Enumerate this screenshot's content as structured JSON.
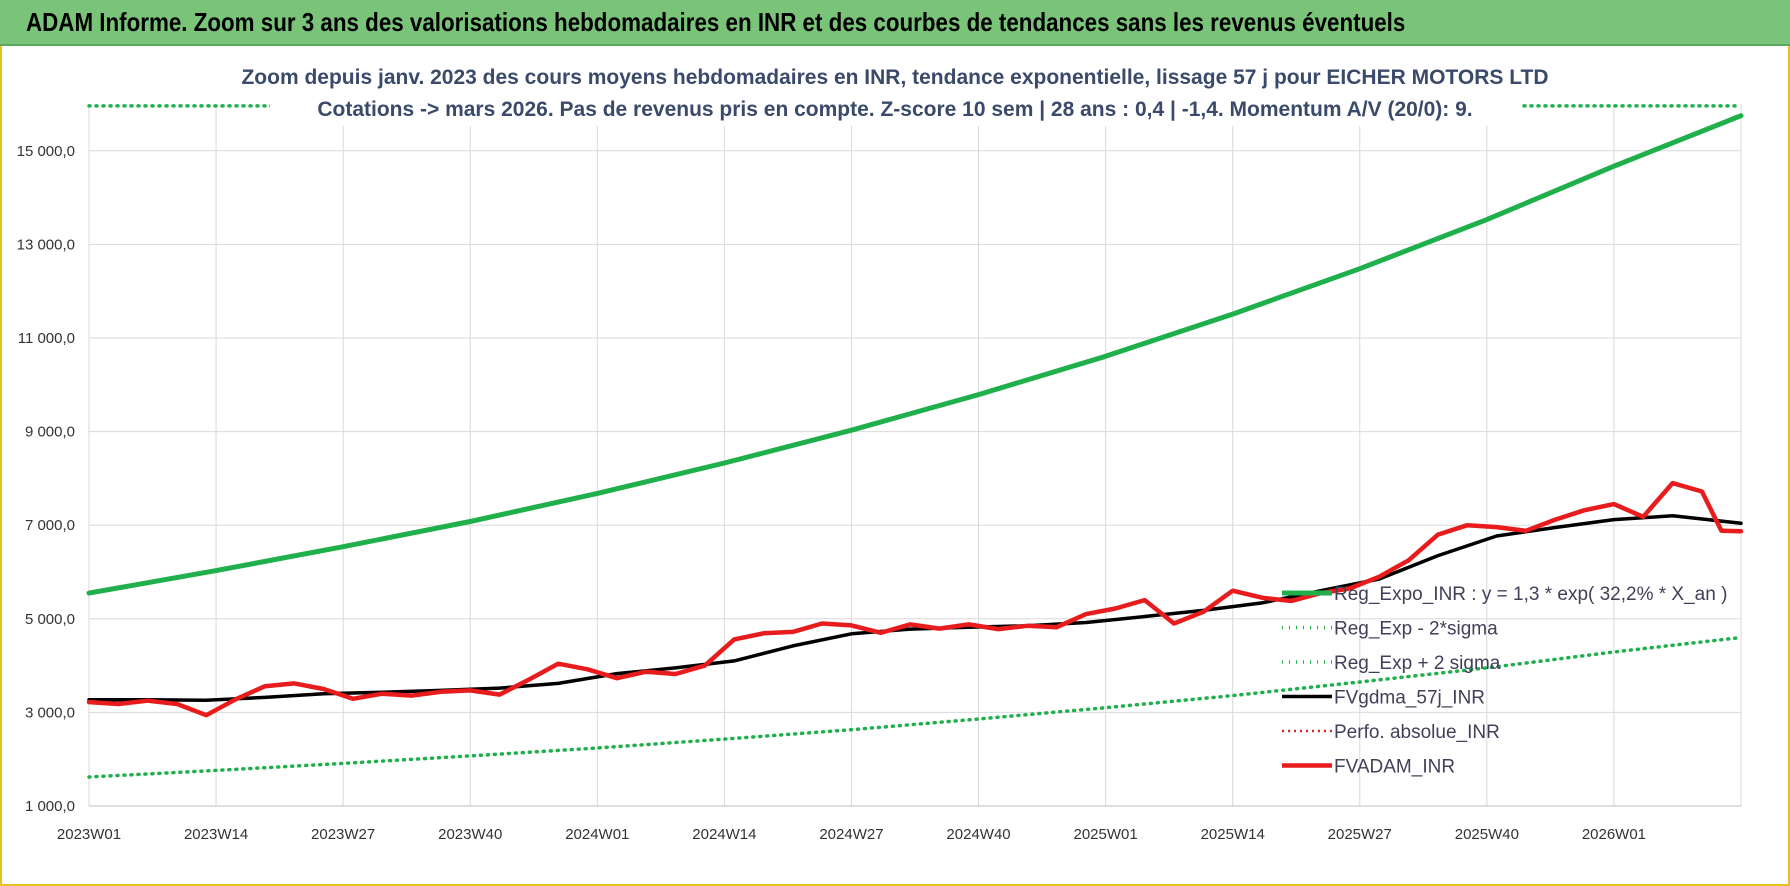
{
  "banner": {
    "title": "ADAM Informe. Zoom sur 3 ans des valorisations hebdomadaires en INR et des courbes de tendances sans les revenus éventuels"
  },
  "colors": {
    "banner_bg": "#7ac47a",
    "trend": "#1fb04c",
    "band": "#1fb04c",
    "smooth": "#000000",
    "perf": "#e0242a",
    "adam": "#e81c1c",
    "grid": "#d9d9d9"
  },
  "chart_data": {
    "type": "line",
    "subtitle_lines": [
      "Zoom depuis janv. 2023 des cours moyens hebdomadaires en INR, tendance exponentielle, lissage 57 j pour EICHER MOTORS LTD",
      "Cotations -> mars 2026. Pas de revenus pris en compte. Z-score 10 sem | 28 ans : 0,4 | -1,4. Momentum A/V (20/0): 9."
    ],
    "y_ticks": [
      "1 000,0",
      "3 000,0",
      "5 000,0",
      "7 000,0",
      "9 000,0",
      "11 000,0",
      "13 000,0",
      "15 000,0"
    ],
    "ylim": [
      1000,
      16000
    ],
    "x_ticks": [
      "2023W01",
      "2023W14",
      "2023W27",
      "2023W40",
      "2024W01",
      "2024W14",
      "2024W27",
      "2024W40",
      "2025W01",
      "2025W14",
      "2025W27",
      "2025W40",
      "2026W01"
    ],
    "grid": true,
    "legend_position": "bottom-right",
    "series": [
      {
        "name": "Reg_Expo_INR : y = 1,3 * exp( 32,2% *  X_an )",
        "style": "solid-thick",
        "x_weeks": [
          0,
          13,
          26,
          39,
          52,
          65,
          78,
          91,
          104,
          117,
          130,
          143,
          156,
          169
        ],
        "values": [
          5550,
          6030,
          6540,
          7080,
          7680,
          8330,
          9030,
          9790,
          10610,
          11510,
          12480,
          13530,
          14670,
          15750
        ]
      },
      {
        "name": "Reg_Exp - 2*sigma",
        "style": "dotted",
        "x_weeks": [
          0,
          13,
          26,
          39,
          52,
          65,
          78,
          91,
          104,
          117,
          130,
          143,
          156,
          169
        ],
        "values": [
          1620,
          1760,
          1910,
          2070,
          2240,
          2430,
          2630,
          2860,
          3100,
          3360,
          3650,
          3950,
          4290,
          4600
        ]
      },
      {
        "name": "Reg_Exp + 2 sigma",
        "style": "dotted",
        "x_weeks": [
          0,
          169
        ],
        "values": [
          15960,
          15960
        ]
      },
      {
        "name": "FVgdma_57j_INR",
        "style": "solid",
        "x_weeks": [
          0,
          6,
          12,
          18,
          24,
          30,
          36,
          42,
          48,
          54,
          60,
          66,
          72,
          78,
          84,
          90,
          96,
          102,
          108,
          114,
          120,
          126,
          132,
          138,
          144,
          150,
          156,
          162,
          169
        ],
        "values": [
          3270,
          3270,
          3260,
          3320,
          3400,
          3430,
          3470,
          3520,
          3620,
          3830,
          3950,
          4100,
          4420,
          4680,
          4780,
          4820,
          4850,
          4920,
          5050,
          5180,
          5340,
          5600,
          5850,
          6350,
          6770,
          6950,
          7120,
          7200,
          7040
        ]
      },
      {
        "name": "Perfo. absolue_INR",
        "style": "dotted",
        "x_weeks": [],
        "values": []
      },
      {
        "name": "FVADAM_INR",
        "style": "solid-thick",
        "x_weeks": [
          0,
          3,
          6,
          9,
          12,
          15,
          18,
          21,
          24,
          27,
          30,
          33,
          36,
          39,
          42,
          45,
          48,
          51,
          54,
          57,
          60,
          63,
          66,
          69,
          72,
          75,
          78,
          81,
          84,
          87,
          90,
          93,
          96,
          99,
          102,
          105,
          108,
          111,
          114,
          117,
          120,
          123,
          126,
          129,
          132,
          135,
          138,
          141,
          144,
          147,
          150,
          153,
          156,
          159,
          162,
          165,
          167,
          169
        ],
        "values": [
          3220,
          3180,
          3250,
          3180,
          2940,
          3280,
          3560,
          3620,
          3500,
          3290,
          3400,
          3360,
          3440,
          3470,
          3380,
          3700,
          4040,
          3920,
          3730,
          3870,
          3820,
          4000,
          4560,
          4690,
          4720,
          4900,
          4860,
          4700,
          4880,
          4790,
          4880,
          4780,
          4850,
          4820,
          5100,
          5220,
          5400,
          4900,
          5150,
          5600,
          5450,
          5380,
          5550,
          5650,
          5900,
          6250,
          6800,
          7000,
          6960,
          6880,
          7120,
          7320,
          7450,
          7180,
          7900,
          7720,
          6880,
          6870
        ]
      }
    ]
  }
}
